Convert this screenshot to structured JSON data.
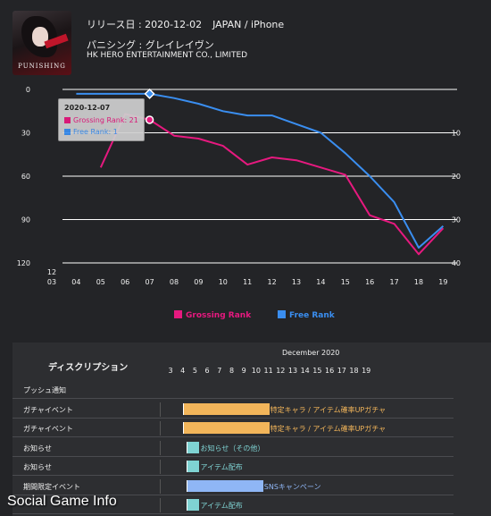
{
  "app": {
    "icon_logo": "PUNISHING",
    "release": "リリース日 : 2020-12-02",
    "platform": "JAPAN / iPhone",
    "publisher": "パニシング : グレイレイヴン",
    "developer": "HK HERO ENTERTAINMENT CO., LIMITED"
  },
  "chart_data": {
    "type": "line",
    "x_year_label": "12",
    "categories": [
      "03",
      "04",
      "05",
      "06",
      "07",
      "08",
      "09",
      "10",
      "11",
      "12",
      "13",
      "14",
      "15",
      "16",
      "17",
      "18",
      "19"
    ],
    "left_axis": {
      "ticks": [
        0,
        30,
        60,
        90,
        120
      ],
      "range": [
        0,
        120
      ],
      "reversed": true
    },
    "right_axis": {
      "ticks": [
        10,
        20,
        30,
        40
      ],
      "range": [
        0,
        40
      ],
      "reversed": true
    },
    "series": [
      {
        "name": "Grossing Rank",
        "color": "#e6197f",
        "axis": "left",
        "values": [
          null,
          null,
          54,
          17,
          21,
          32,
          34,
          39,
          52,
          47,
          49,
          54,
          59,
          87,
          93,
          114,
          96
        ]
      },
      {
        "name": "Free Rank",
        "color": "#3a8ef0",
        "axis": "right",
        "values": [
          null,
          1,
          1,
          1,
          1,
          2,
          3.3,
          5,
          6,
          6,
          8,
          10,
          14.7,
          20,
          26,
          36.5,
          31.5
        ]
      }
    ],
    "legend": [
      "Grossing Rank",
      "Free Rank"
    ],
    "legend_position": "bottom",
    "grid": true,
    "highlight_index": 4,
    "tooltip": {
      "date": "2020-12-07",
      "grossing": "Grossing Rank: 21",
      "free": "Free Rank: 1"
    }
  },
  "timeline": {
    "header": "ディスクリプション",
    "month": "December 2020",
    "days": [
      "3",
      "4",
      "5",
      "6",
      "7",
      "8",
      "9",
      "10",
      "11",
      "12",
      "13",
      "14",
      "15",
      "16",
      "17",
      "18",
      "19"
    ],
    "events": [
      {
        "name": "プッシュ通知",
        "label": "",
        "color": "",
        "start": null,
        "end": null
      },
      {
        "name": "ガチャイベント",
        "label": "特定キャラ / アイテム確率UPガチャ",
        "color": "#f2b55a",
        "start": 4,
        "end": 11
      },
      {
        "name": "ガチャイベント",
        "label": "特定キャラ / アイテム確率UPガチャ",
        "color": "#f2b55a",
        "start": 4,
        "end": 11
      },
      {
        "name": "お知らせ",
        "label": "お知らせ（その他）",
        "color": "#7fd3d3",
        "start": 4.3,
        "end": 5.3
      },
      {
        "name": "お知らせ",
        "label": "アイテム配布",
        "color": "#7fd3d3",
        "start": 4.3,
        "end": 5.3
      },
      {
        "name": "期間限定イベント",
        "label": "SNSキャンペーン",
        "color": "#8fb6f5",
        "start": 4.3,
        "end": 10.5
      },
      {
        "name": "",
        "label": "アイテム配布",
        "color": "#7fd3d3",
        "start": 4.3,
        "end": 5.3
      }
    ]
  },
  "watermark": "Social Game Info"
}
